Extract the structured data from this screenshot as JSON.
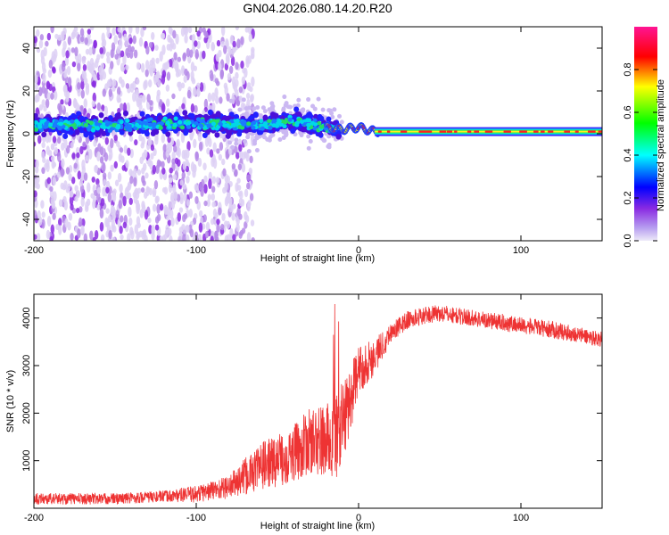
{
  "title": "GN04.2026.080.14.20.R20",
  "chart_data": [
    {
      "type": "heatmap",
      "title": "GN04.2026.080.14.20.R20",
      "xlabel": "Height of straight line (km)",
      "ylabel": "Frequency (Hz)",
      "xlim": [
        -200,
        150
      ],
      "ylim": [
        -50,
        50
      ],
      "xticks": [
        -200,
        -100,
        0,
        100
      ],
      "xtick_labels": [
        "-200",
        "-100",
        "0",
        "100"
      ],
      "yticks": [
        -40,
        -20,
        0,
        20,
        40
      ],
      "ytick_labels": [
        "-40",
        "-20",
        "0",
        "20",
        "40"
      ],
      "colorbar": {
        "label": "Normalized spectral amplitude",
        "range": [
          0,
          1
        ],
        "ticks": [
          0.0,
          0.2,
          0.4,
          0.6,
          0.8
        ],
        "tick_labels": [
          "0.0",
          "0.2",
          "0.4",
          "0.6",
          "0.8"
        ],
        "colors": [
          "#eeeaf8",
          "#8a2be2",
          "#0000ff",
          "#00ffff",
          "#00ff00",
          "#ffff00",
          "#ff0000",
          "#ff1493"
        ]
      },
      "ridge": {
        "description": "scattered noise below ~-80 km, concentrated band near 3 Hz from -200 to -15 km, narrow strong line near 1 Hz from 10 to 150 km",
        "noise_extent_km": [
          -200,
          -80
        ],
        "band_center_hz": [
          [
            -200,
            4
          ],
          [
            -150,
            4
          ],
          [
            -100,
            5
          ],
          [
            -60,
            4
          ],
          [
            -40,
            6
          ],
          [
            -20,
            3
          ],
          [
            -10,
            2
          ],
          [
            0,
            3
          ],
          [
            10,
            1
          ],
          [
            150,
            1
          ]
        ]
      }
    },
    {
      "type": "line",
      "xlabel": "Height of straight line (km)",
      "ylabel": "SNR (10 * v/v)",
      "xlim": [
        -200,
        150
      ],
      "ylim": [
        0,
        4500
      ],
      "xticks": [
        -200,
        -100,
        0,
        100
      ],
      "xtick_labels": [
        "-200",
        "-100",
        "0",
        "100"
      ],
      "yticks": [
        1000,
        2000,
        3000,
        4000
      ],
      "ytick_labels": [
        "1000",
        "2000",
        "3000",
        "4000"
      ],
      "series": [
        {
          "name": "SNR",
          "color": "#ee3333",
          "envelope": {
            "x": [
              -200,
              -150,
              -120,
              -100,
              -80,
              -70,
              -60,
              -50,
              -40,
              -30,
              -20,
              -15,
              -10,
              -5,
              0,
              10,
              20,
              30,
              40,
              50,
              60,
              80,
              100,
              120,
              150
            ],
            "mean": [
              200,
              200,
              250,
              300,
              450,
              650,
              900,
              1000,
              1150,
              1400,
              1400,
              1500,
              1800,
              2300,
              2900,
              3200,
              3700,
              3950,
              4050,
              4100,
              4050,
              3950,
              3850,
              3750,
              3550
            ],
            "amp": [
              120,
              120,
              120,
              180,
              250,
              400,
              500,
              550,
              600,
              700,
              800,
              1000,
              900,
              700,
              500,
              400,
              200,
              200,
              180,
              180,
              180,
              180,
              180,
              180,
              160
            ]
          }
        }
      ]
    }
  ]
}
